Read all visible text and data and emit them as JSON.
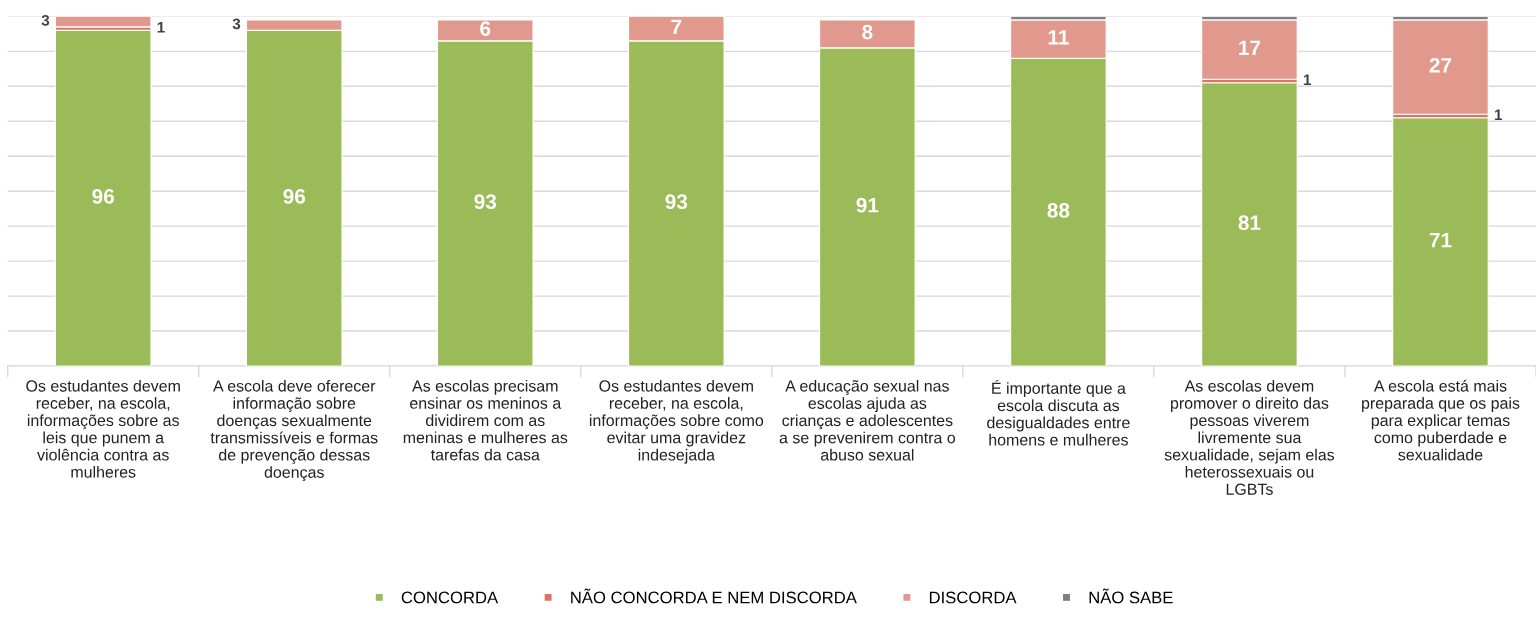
{
  "chart_data": {
    "type": "bar",
    "stacked": true,
    "categories": [
      "Os estudantes devem\nreceber, na escola,\ninformações sobre as\nleis que punem a\nviolência contra as\nmulheres",
      "A escola deve oferecer\ninformação sobre\ndoenças sexualmente\ntransmissíveis e formas\nde prevenção dessas\ndoenças",
      "As escolas precisam\nensinar os meninos a\ndividirem com as\nmeninas e mulheres as\ntarefas da casa",
      "Os estudantes devem\nreceber, na escola,\ninformações sobre como\nevitar uma gravidez\nindesejada",
      "A educação sexual nas\nescolas ajuda as\ncrianças e adolescentes\na se prevenirem contra o\nabuso sexual",
      "É importante que a\nescola discuta as\ndesigualdades entre\nhomens e mulheres",
      "As escolas devem\npromover o direito das\npessoas viverem\nlivremente sua\nsexualidade, sejam elas\nheterossexuais ou\nLGBTs",
      "A escola está mais\npreparada que os pais\npara explicar temas\ncomo puberdade e\nsexualidade"
    ],
    "series": [
      {
        "name": "CONCORDA",
        "color": "#9bbb59",
        "values": [
          96,
          96,
          93,
          93,
          91,
          88,
          81,
          71
        ],
        "value_labels": [
          "96",
          "96",
          "93",
          "93",
          "91",
          "88",
          "81",
          "71"
        ]
      },
      {
        "name": "NÃO CONCORDA E NEM DISCORDA",
        "color": "#dc7565",
        "values": [
          1,
          null,
          null,
          null,
          null,
          null,
          1,
          1
        ],
        "value_labels": [
          "1",
          null,
          null,
          null,
          null,
          null,
          "1",
          "1"
        ]
      },
      {
        "name": "DISCORDA",
        "color": "#e0998c",
        "values": [
          3,
          3,
          6,
          7,
          8,
          11,
          17,
          27
        ],
        "value_labels": [
          "3",
          "3",
          "6",
          "7",
          "8",
          "11",
          "17",
          "27"
        ]
      },
      {
        "name": "NÃO SABE",
        "color": "#7f7f7f",
        "values": [
          null,
          null,
          null,
          null,
          null,
          1,
          1,
          1
        ],
        "value_labels": [
          null,
          null,
          null,
          null,
          null,
          null,
          null,
          null
        ]
      }
    ],
    "ylim": [
      0,
      100
    ],
    "yticks": [
      {
        "value": 0,
        "label": null
      },
      {
        "value": 10,
        "label": null
      },
      {
        "value": 20,
        "label": null
      },
      {
        "value": 30,
        "label": null
      },
      {
        "value": 40,
        "label": null
      },
      {
        "value": 50,
        "label": null
      },
      {
        "value": 60,
        "label": null
      },
      {
        "value": 70,
        "label": null
      },
      {
        "value": 80,
        "label": null
      },
      {
        "value": 90,
        "label": null
      },
      {
        "value": 100,
        "label": null
      }
    ],
    "grid": "y",
    "legend": "bottom"
  }
}
